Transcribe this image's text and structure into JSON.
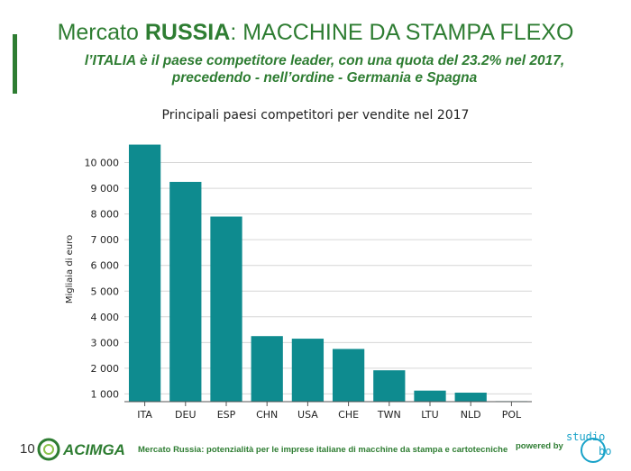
{
  "slide": {
    "title_prefix": "Mercato ",
    "title_bold": "RUSSIA",
    "title_suffix": ": MACCHINE DA STAMPA FLEXO",
    "subtitle_line1": "l’ITALIA è il paese competitore leader, con una quota del 23.2% nel 2017,",
    "subtitle_line2": "precedendo - nell’ordine - Germania e Spagna"
  },
  "footer": {
    "page_number": "10",
    "logo_text": "ACIMGA",
    "text": "Mercato Russia: potenzialità per le imprese italiane di macchine da stampa e cartotecniche",
    "powered_by": "powered by",
    "partner_logo_text": "studio",
    "partner_logo_suffix": "bo"
  },
  "colors": {
    "accent": "#2e7d32",
    "bar": "#0e8b8f",
    "partner": "#1aa3c9"
  },
  "chart_data": {
    "type": "bar",
    "title": "Principali paesi competitori per vendite nel 2017",
    "ylabel": "Migliaia di euro",
    "xlabel": "",
    "categories": [
      "ITA",
      "DEU",
      "ESP",
      "CHN",
      "USA",
      "CHE",
      "TWN",
      "LTU",
      "NLD",
      "POL"
    ],
    "values": [
      10700,
      9250,
      7900,
      3250,
      3150,
      2750,
      1920,
      1130,
      1050,
      720
    ],
    "ylim": [
      700,
      11000
    ],
    "yticks": [
      1000,
      2000,
      3000,
      4000,
      5000,
      6000,
      7000,
      8000,
      9000,
      10000
    ],
    "ytick_labels": [
      "1 000",
      "2 000",
      "3 000",
      "4 000",
      "5 000",
      "6 000",
      "7 000",
      "8 000",
      "9 000",
      "10 000"
    ],
    "grid": true,
    "legend": "none"
  }
}
